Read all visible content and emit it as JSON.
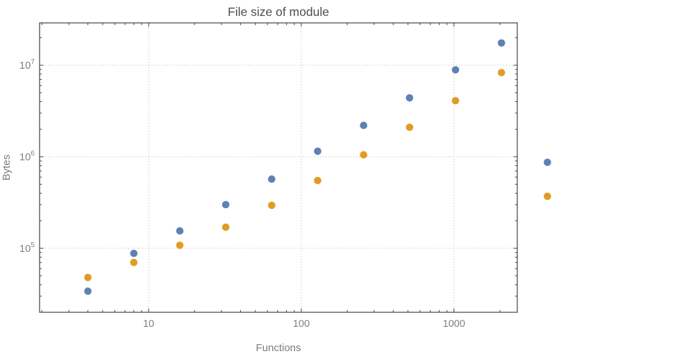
{
  "chart_data": {
    "type": "scatter",
    "title": "File size of module",
    "xlabel": "Functions",
    "ylabel": "Bytes",
    "x_scale": "log",
    "y_scale": "log",
    "grid": "dotted major gridlines",
    "legend_position": "none",
    "xlim": [
      1.93,
      2600
    ],
    "ylim": [
      20000,
      29000000
    ],
    "x_major_ticks": [
      10,
      100,
      1000
    ],
    "x_tick_labels": [
      "10",
      "100",
      "1000"
    ],
    "y_major_ticks": [
      100000,
      1000000,
      10000000
    ],
    "y_tick_labels": [
      {
        "base": "10",
        "exponent": "5",
        "value": 100000
      },
      {
        "base": "10",
        "exponent": "6",
        "value": 1000000
      },
      {
        "base": "10",
        "exponent": "7",
        "value": 10000000
      }
    ],
    "x": [
      4,
      8,
      16,
      32,
      64,
      128,
      256,
      512,
      1024,
      2048,
      4096
    ],
    "series": [
      {
        "name": "series-blue",
        "color": "#5e81b5",
        "values": [
          34000,
          88000,
          155000,
          300000,
          570000,
          1150000,
          2200000,
          4400000,
          8900000,
          17500000,
          870000
        ]
      },
      {
        "name": "series-orange",
        "color": "#e19c24",
        "values": [
          48000,
          70000,
          108000,
          170000,
          295000,
          550000,
          1050000,
          2100000,
          4100000,
          8300000,
          370000
        ]
      }
    ],
    "points_clipped_to_frame": false
  },
  "style": {
    "background": "#ffffff",
    "frame_color": "#3f3f3f",
    "grid_color": "#b3b3b3",
    "tick_label_color": "#7f7f7f",
    "title_color": "#4d4d4d",
    "axis_label_color": "#7a7a7a"
  }
}
